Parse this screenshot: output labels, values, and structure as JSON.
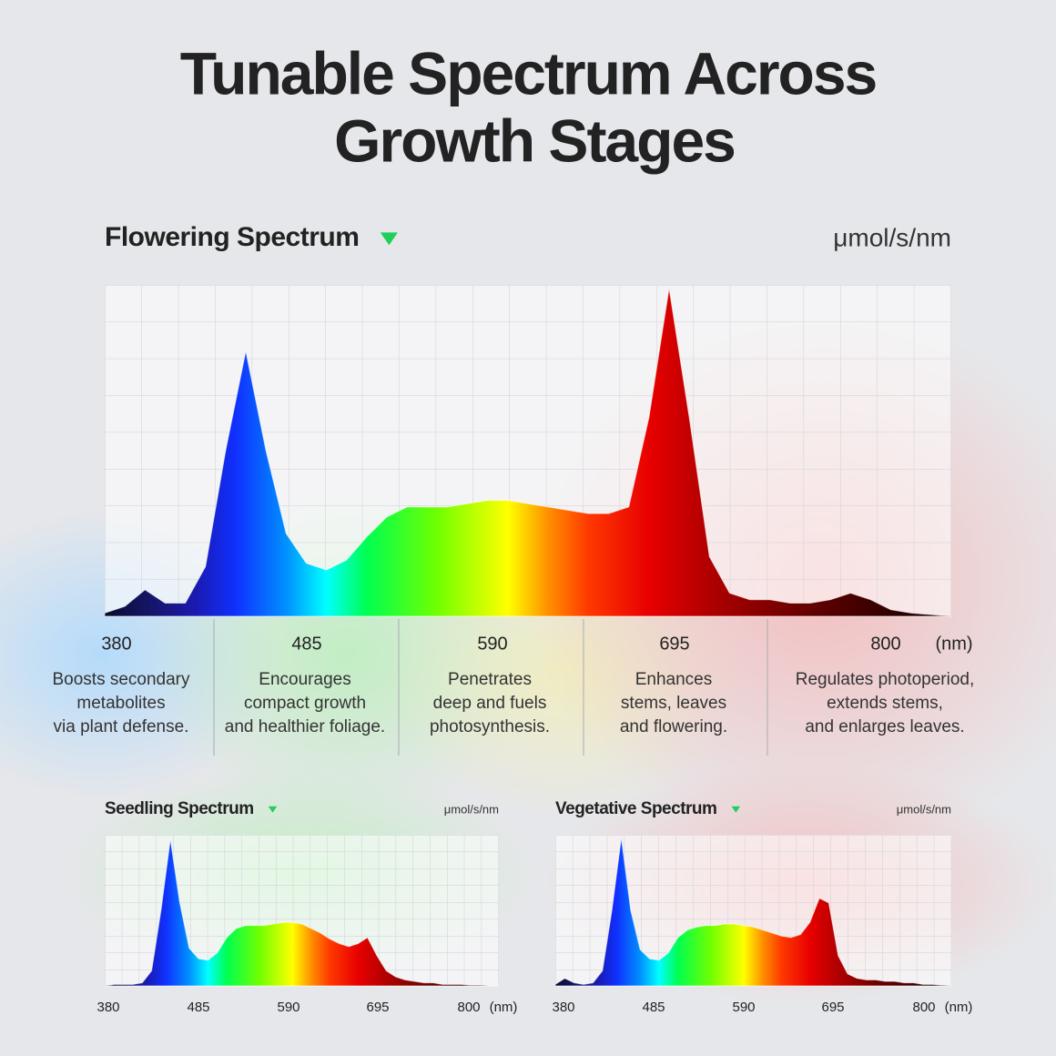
{
  "title_lines": [
    "Tunable Spectrum Across",
    "Growth Stages"
  ],
  "chart_data": [
    {
      "type": "area",
      "title": "Flowering Spectrum",
      "unit": "μmol/s/nm",
      "x_label": "(nm)",
      "x": [
        380,
        390,
        400,
        410,
        420,
        430,
        440,
        450,
        460,
        470,
        480,
        490,
        500,
        510,
        520,
        530,
        540,
        550,
        560,
        570,
        580,
        590,
        600,
        610,
        620,
        630,
        640,
        650,
        660,
        670,
        680,
        690,
        700,
        710,
        720,
        730,
        740,
        750,
        760,
        770,
        780,
        790,
        800
      ],
      "values": [
        1,
        3,
        8,
        4,
        4,
        15,
        50,
        80,
        50,
        25,
        16,
        14,
        17,
        24,
        30,
        33,
        33,
        33,
        34,
        35,
        35,
        34,
        33,
        32,
        31,
        31,
        33,
        60,
        99,
        60,
        18,
        7,
        5,
        5,
        4,
        4,
        5,
        7,
        5,
        2,
        1,
        0.5,
        0
      ],
      "xlim": [
        380,
        800
      ],
      "ylim": [
        0,
        100
      ],
      "xticks": [
        380,
        485,
        590,
        695,
        800
      ],
      "annotations": [
        [
          "Boosts secondary",
          "metabolites",
          "via plant defense."
        ],
        [
          "Encourages",
          "compact growth",
          "and healthier foliage."
        ],
        [
          "Penetrates",
          "deep and fuels",
          "photosynthesis."
        ],
        [
          "Enhances",
          "stems, leaves",
          "and flowering."
        ],
        [
          "Regulates photoperiod,",
          "extends stems,",
          "and enlarges leaves."
        ]
      ]
    },
    {
      "type": "area",
      "title": "Seedling Spectrum",
      "unit": "μmol/s/nm",
      "x_label": "(nm)",
      "x": [
        380,
        390,
        400,
        410,
        420,
        430,
        440,
        450,
        460,
        470,
        480,
        490,
        500,
        510,
        520,
        530,
        540,
        550,
        560,
        570,
        580,
        590,
        600,
        610,
        620,
        630,
        640,
        650,
        660,
        670,
        680,
        690,
        700,
        710,
        720,
        730,
        740,
        750,
        760,
        770,
        780,
        790,
        800
      ],
      "values": [
        0,
        1,
        1,
        1,
        2,
        10,
        50,
        97,
        55,
        25,
        18,
        17,
        22,
        32,
        38,
        40,
        40,
        40,
        41,
        42,
        42,
        41,
        38,
        35,
        31,
        28,
        26,
        28,
        32,
        20,
        10,
        6,
        4,
        3,
        2,
        2,
        1,
        1,
        1,
        0.5,
        0.5,
        0,
        0
      ],
      "xlim": [
        380,
        800
      ],
      "ylim": [
        0,
        100
      ],
      "xticks": [
        380,
        485,
        590,
        695,
        800
      ]
    },
    {
      "type": "area",
      "title": "Vegetative Spectrum",
      "unit": "μmol/s/nm",
      "x_label": "(nm)",
      "x": [
        380,
        390,
        400,
        410,
        420,
        430,
        440,
        450,
        460,
        470,
        480,
        490,
        500,
        510,
        520,
        530,
        540,
        550,
        560,
        570,
        580,
        590,
        600,
        610,
        620,
        630,
        640,
        650,
        660,
        670,
        680,
        690,
        700,
        710,
        720,
        730,
        740,
        750,
        760,
        770,
        780,
        790,
        800
      ],
      "values": [
        1,
        5,
        2,
        1,
        2,
        10,
        50,
        98,
        50,
        24,
        18,
        17,
        22,
        32,
        37,
        39,
        40,
        40,
        41,
        41,
        40,
        39,
        37,
        35,
        33,
        32,
        34,
        42,
        58,
        55,
        20,
        8,
        5,
        4,
        4,
        3,
        3,
        2,
        2,
        1,
        1,
        0.5,
        0
      ],
      "xlim": [
        380,
        800
      ],
      "ylim": [
        0,
        100
      ],
      "xticks": [
        380,
        485,
        590,
        695,
        800
      ]
    }
  ]
}
